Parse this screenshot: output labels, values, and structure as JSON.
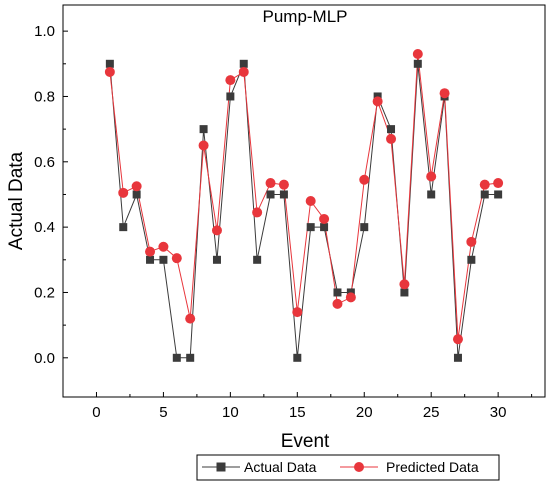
{
  "chart_data": {
    "type": "line",
    "title": "Pump-MLP",
    "xlabel": "Event",
    "ylabel": "Actual Data",
    "xlim": [
      -2.5,
      33.5
    ],
    "ylim": [
      -0.12,
      1.08
    ],
    "xticks": [
      0,
      5,
      10,
      15,
      20,
      25,
      30
    ],
    "yticks": [
      0.0,
      0.2,
      0.4,
      0.6,
      0.8,
      1.0
    ],
    "xtick_labels": [
      "0",
      "5",
      "10",
      "15",
      "20",
      "25",
      "30"
    ],
    "ytick_labels": [
      "0.0",
      "0.2",
      "0.4",
      "0.6",
      "0.8",
      "1.0"
    ],
    "x": [
      1,
      2,
      3,
      4,
      5,
      6,
      7,
      8,
      9,
      10,
      11,
      12,
      13,
      14,
      15,
      16,
      17,
      18,
      19,
      20,
      21,
      22,
      23,
      24,
      25,
      26,
      27,
      28,
      29,
      30
    ],
    "series": [
      {
        "name": "Actual Data",
        "color": "#3b3b3b",
        "marker": "square",
        "values": [
          0.9,
          0.4,
          0.5,
          0.3,
          0.3,
          0.0,
          0.0,
          0.7,
          0.3,
          0.8,
          0.9,
          0.3,
          0.5,
          0.5,
          0.0,
          0.4,
          0.4,
          0.2,
          0.2,
          0.4,
          0.8,
          0.7,
          0.2,
          0.9,
          0.5,
          0.8,
          0.0,
          0.3,
          0.5,
          0.5
        ]
      },
      {
        "name": "Predicted Data",
        "color": "#e8363c",
        "marker": "circle",
        "values": [
          0.875,
          0.505,
          0.525,
          0.325,
          0.34,
          0.305,
          0.12,
          0.65,
          0.39,
          0.85,
          0.875,
          0.445,
          0.535,
          0.53,
          0.14,
          0.48,
          0.425,
          0.165,
          0.185,
          0.545,
          0.785,
          0.67,
          0.225,
          0.93,
          0.555,
          0.81,
          0.057,
          0.355,
          0.53,
          0.535
        ]
      }
    ],
    "legend_position": "bottom"
  }
}
